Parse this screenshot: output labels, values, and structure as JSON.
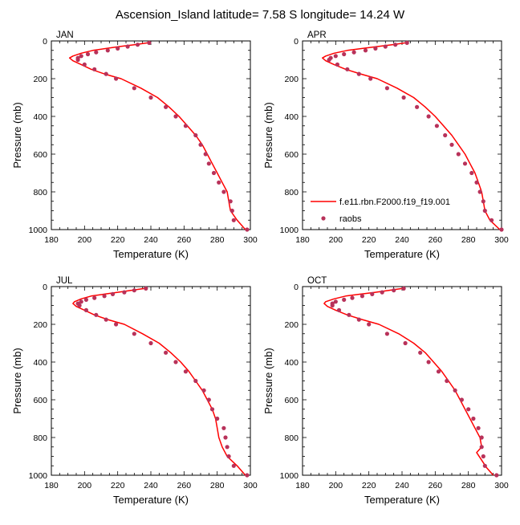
{
  "title": "Ascension_Island  latitude= 7.58 S longitude= 14.24 W",
  "xlabel": "Temperature (K)",
  "ylabel": "Pressure (mb)",
  "legend": {
    "model": "f.e11.rbn.F2000.f19_f19.001",
    "obs": "raobs"
  },
  "colors": {
    "model": "#ff0000",
    "obs": "#b8325a"
  },
  "chart_data": [
    {
      "type": "line",
      "panel": "JAN",
      "xlim": [
        180,
        300
      ],
      "ylim": [
        0,
        1000
      ],
      "y_reversed": true,
      "x_ticks": [
        180,
        200,
        220,
        240,
        260,
        280,
        300
      ],
      "y_ticks": [
        0,
        200,
        400,
        600,
        800,
        1000
      ],
      "series": [
        {
          "name": "f.e11.rbn.F2000.f19_f19.001",
          "style": "line",
          "points": [
            [
              238,
              10
            ],
            [
              230,
              20
            ],
            [
              221,
              30
            ],
            [
              213,
              40
            ],
            [
              205,
              50
            ],
            [
              198,
              65
            ],
            [
              193,
              80
            ],
            [
              191,
              90
            ],
            [
              193,
              105
            ],
            [
              198,
              125
            ],
            [
              204,
              150
            ],
            [
              212,
              175
            ],
            [
              222,
              200
            ],
            [
              234,
              250
            ],
            [
              244,
              300
            ],
            [
              251,
              350
            ],
            [
              257,
              400
            ],
            [
              262,
              450
            ],
            [
              267,
              500
            ],
            [
              271,
              550
            ],
            [
              274,
              600
            ],
            [
              277,
              650
            ],
            [
              280,
              700
            ],
            [
              283,
              750
            ],
            [
              286,
              800
            ],
            [
              287,
              850
            ],
            [
              288,
              900
            ],
            [
              292,
              950
            ],
            [
              297,
              1000
            ]
          ]
        },
        {
          "name": "raobs",
          "style": "markers",
          "points": [
            [
              239,
              10
            ],
            [
              232,
              20
            ],
            [
              226,
              30
            ],
            [
              220,
              40
            ],
            [
              214,
              50
            ],
            [
              207,
              60
            ],
            [
              202,
              70
            ],
            [
              198,
              80
            ],
            [
              196,
              90
            ],
            [
              196,
              100
            ],
            [
              200,
              125
            ],
            [
              206,
              150
            ],
            [
              213,
              175
            ],
            [
              219,
              200
            ],
            [
              230,
              250
            ],
            [
              240,
              300
            ],
            [
              249,
              350
            ],
            [
              255,
              400
            ],
            [
              261,
              450
            ],
            [
              267,
              500
            ],
            [
              270,
              550
            ],
            [
              273,
              600
            ],
            [
              275,
              650
            ],
            [
              278,
              700
            ],
            [
              281,
              750
            ],
            [
              284,
              800
            ],
            [
              288,
              850
            ],
            [
              289,
              900
            ],
            [
              290,
              950
            ],
            [
              298,
              1000
            ]
          ]
        }
      ]
    },
    {
      "type": "line",
      "panel": "APR",
      "xlim": [
        180,
        300
      ],
      "ylim": [
        0,
        1000
      ],
      "y_reversed": true,
      "x_ticks": [
        180,
        200,
        220,
        240,
        260,
        280,
        300
      ],
      "y_ticks": [
        0,
        200,
        400,
        600,
        800,
        1000
      ],
      "series": [
        {
          "name": "f.e11.rbn.F2000.f19_f19.001",
          "style": "line",
          "points": [
            [
              242,
              10
            ],
            [
              234,
              20
            ],
            [
              225,
              30
            ],
            [
              216,
              40
            ],
            [
              207,
              50
            ],
            [
              199,
              65
            ],
            [
              194,
              80
            ],
            [
              192,
              90
            ],
            [
              194,
              105
            ],
            [
              199,
              125
            ],
            [
              206,
              150
            ],
            [
              215,
              175
            ],
            [
              225,
              200
            ],
            [
              237,
              250
            ],
            [
              247,
              300
            ],
            [
              254,
              350
            ],
            [
              260,
              400
            ],
            [
              265,
              450
            ],
            [
              270,
              500
            ],
            [
              274,
              550
            ],
            [
              278,
              600
            ],
            [
              281,
              650
            ],
            [
              284,
              700
            ],
            [
              286,
              750
            ],
            [
              288,
              800
            ],
            [
              289,
              850
            ],
            [
              290,
              900
            ],
            [
              293,
              950
            ],
            [
              299,
              1000
            ]
          ]
        },
        {
          "name": "raobs",
          "style": "markers",
          "points": [
            [
              243,
              10
            ],
            [
              236,
              20
            ],
            [
              230,
              30
            ],
            [
              224,
              40
            ],
            [
              218,
              50
            ],
            [
              211,
              60
            ],
            [
              205,
              70
            ],
            [
              200,
              80
            ],
            [
              197,
              90
            ],
            [
              196,
              100
            ],
            [
              201,
              125
            ],
            [
              207,
              150
            ],
            [
              214,
              175
            ],
            [
              221,
              200
            ],
            [
              231,
              250
            ],
            [
              241,
              300
            ],
            [
              249,
              350
            ],
            [
              256,
              400
            ],
            [
              261,
              450
            ],
            [
              266,
              500
            ],
            [
              270,
              550
            ],
            [
              274,
              600
            ],
            [
              278,
              650
            ],
            [
              282,
              700
            ],
            [
              285,
              750
            ],
            [
              287,
              800
            ],
            [
              289,
              850
            ],
            [
              290,
              900
            ],
            [
              294,
              950
            ],
            [
              300,
              1000
            ]
          ]
        }
      ]
    },
    {
      "type": "line",
      "panel": "JUL",
      "xlim": [
        180,
        300
      ],
      "ylim": [
        0,
        1000
      ],
      "y_reversed": true,
      "x_ticks": [
        180,
        200,
        220,
        240,
        260,
        280,
        300
      ],
      "y_ticks": [
        0,
        200,
        400,
        600,
        800,
        1000
      ],
      "series": [
        {
          "name": "f.e11.rbn.F2000.f19_f19.001",
          "style": "line",
          "points": [
            [
              236,
              10
            ],
            [
              228,
              20
            ],
            [
              220,
              30
            ],
            [
              212,
              40
            ],
            [
              204,
              50
            ],
            [
              198,
              65
            ],
            [
              194,
              80
            ],
            [
              193,
              90
            ],
            [
              195,
              105
            ],
            [
              200,
              125
            ],
            [
              206,
              150
            ],
            [
              214,
              175
            ],
            [
              224,
              200
            ],
            [
              235,
              250
            ],
            [
              245,
              300
            ],
            [
              252,
              350
            ],
            [
              258,
              400
            ],
            [
              263,
              450
            ],
            [
              267,
              500
            ],
            [
              271,
              550
            ],
            [
              274,
              600
            ],
            [
              277,
              650
            ],
            [
              279,
              700
            ],
            [
              280,
              750
            ],
            [
              281,
              800
            ],
            [
              283,
              850
            ],
            [
              286,
              900
            ],
            [
              292,
              950
            ],
            [
              297,
              1000
            ]
          ]
        },
        {
          "name": "raobs",
          "style": "markers",
          "points": [
            [
              237,
              10
            ],
            [
              230,
              20
            ],
            [
              224,
              30
            ],
            [
              217,
              40
            ],
            [
              212,
              50
            ],
            [
              206,
              60
            ],
            [
              201,
              70
            ],
            [
              198,
              80
            ],
            [
              196,
              90
            ],
            [
              197,
              100
            ],
            [
              201,
              125
            ],
            [
              207,
              150
            ],
            [
              213,
              175
            ],
            [
              219,
              200
            ],
            [
              230,
              250
            ],
            [
              240,
              300
            ],
            [
              249,
              350
            ],
            [
              255,
              400
            ],
            [
              261,
              450
            ],
            [
              267,
              500
            ],
            [
              272,
              550
            ],
            [
              275,
              600
            ],
            [
              277,
              650
            ],
            [
              280,
              700
            ],
            [
              284,
              750
            ],
            [
              285,
              800
            ],
            [
              286,
              850
            ],
            [
              287,
              900
            ],
            [
              290,
              950
            ],
            [
              298,
              1000
            ]
          ]
        }
      ]
    },
    {
      "type": "line",
      "panel": "OCT",
      "xlim": [
        180,
        300
      ],
      "ylim": [
        0,
        1000
      ],
      "y_reversed": true,
      "x_ticks": [
        180,
        200,
        220,
        240,
        260,
        280,
        300
      ],
      "y_ticks": [
        0,
        200,
        400,
        600,
        800,
        1000
      ],
      "series": [
        {
          "name": "f.e11.rbn.F2000.f19_f19.001",
          "style": "line",
          "points": [
            [
              240,
              10
            ],
            [
              232,
              20
            ],
            [
              224,
              30
            ],
            [
              215,
              40
            ],
            [
              206,
              50
            ],
            [
              199,
              65
            ],
            [
              194,
              80
            ],
            [
              193,
              90
            ],
            [
              195,
              105
            ],
            [
              200,
              125
            ],
            [
              207,
              150
            ],
            [
              216,
              175
            ],
            [
              226,
              200
            ],
            [
              238,
              250
            ],
            [
              247,
              300
            ],
            [
              254,
              350
            ],
            [
              259,
              400
            ],
            [
              264,
              450
            ],
            [
              268,
              500
            ],
            [
              272,
              550
            ],
            [
              275,
              600
            ],
            [
              278,
              650
            ],
            [
              281,
              700
            ],
            [
              284,
              750
            ],
            [
              287,
              800
            ],
            [
              288,
              850
            ],
            [
              285,
              880
            ],
            [
              288,
              920
            ],
            [
              291,
              960
            ],
            [
              295,
              1000
            ]
          ]
        },
        {
          "name": "raobs",
          "style": "markers",
          "points": [
            [
              241,
              10
            ],
            [
              235,
              20
            ],
            [
              228,
              30
            ],
            [
              222,
              40
            ],
            [
              216,
              50
            ],
            [
              210,
              60
            ],
            [
              205,
              70
            ],
            [
              200,
              80
            ],
            [
              198,
              90
            ],
            [
              198,
              100
            ],
            [
              202,
              125
            ],
            [
              208,
              150
            ],
            [
              214,
              175
            ],
            [
              220,
              200
            ],
            [
              231,
              250
            ],
            [
              242,
              300
            ],
            [
              251,
              350
            ],
            [
              256,
              400
            ],
            [
              262,
              450
            ],
            [
              267,
              500
            ],
            [
              272,
              550
            ],
            [
              276,
              600
            ],
            [
              280,
              650
            ],
            [
              283,
              700
            ],
            [
              286,
              750
            ],
            [
              288,
              800
            ],
            [
              288,
              850
            ],
            [
              289,
              900
            ],
            [
              290,
              950
            ],
            [
              297,
              1000
            ]
          ]
        }
      ]
    }
  ]
}
